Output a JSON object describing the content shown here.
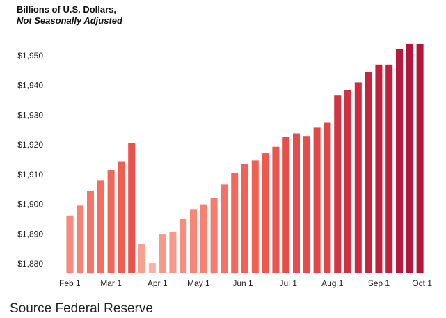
{
  "header": {
    "title": "Billions of U.S. Dollars,",
    "subtitle": "Not Seasonally Adjusted"
  },
  "footer": {
    "source": "Source Federal Reserve"
  },
  "colors": {
    "low": "#fbb1a0",
    "mid": "#f0584d",
    "high": "#b5153b"
  },
  "chart_data": {
    "type": "bar",
    "ylim": [
      1876,
      1955
    ],
    "yticks": [
      1880,
      1890,
      1900,
      1910,
      1920,
      1930,
      1940,
      1950
    ],
    "ytick_labels": [
      "$1,880",
      "$1,890",
      "$1,900",
      "$1,910",
      "$1,920",
      "$1,930",
      "$1,940",
      "$1,950"
    ],
    "grid": false,
    "legend": "none",
    "x_tick_labels": [
      {
        "label": "Feb 1",
        "index": 0
      },
      {
        "label": "Mar 1",
        "index": 4
      },
      {
        "label": "Apr 1",
        "index": 8.5
      },
      {
        "label": "May 1",
        "index": 12.5
      },
      {
        "label": "Jun 1",
        "index": 16.8
      },
      {
        "label": "Jul 1",
        "index": 21.2
      },
      {
        "label": "Aug 1",
        "index": 25.5
      },
      {
        "label": "Sep 1",
        "index": 30
      },
      {
        "label": "Oct 1",
        "index": 34.2
      }
    ],
    "values": [
      1896.2,
      1899.6,
      1904.6,
      1908.0,
      1911.5,
      1914.3,
      1920.6,
      1886.7,
      1880.2,
      1889.8,
      1890.7,
      1895.0,
      1898.2,
      1900.0,
      1902.0,
      1906.6,
      1910.6,
      1913.5,
      1914.8,
      1917.2,
      1919.4,
      1922.6,
      1923.9,
      1922.8,
      1925.8,
      1927.4,
      1936.6,
      1938.5,
      1941.0,
      1944.6,
      1947.0,
      1947.0,
      1952.2,
      1954.0,
      1954.0
    ]
  }
}
